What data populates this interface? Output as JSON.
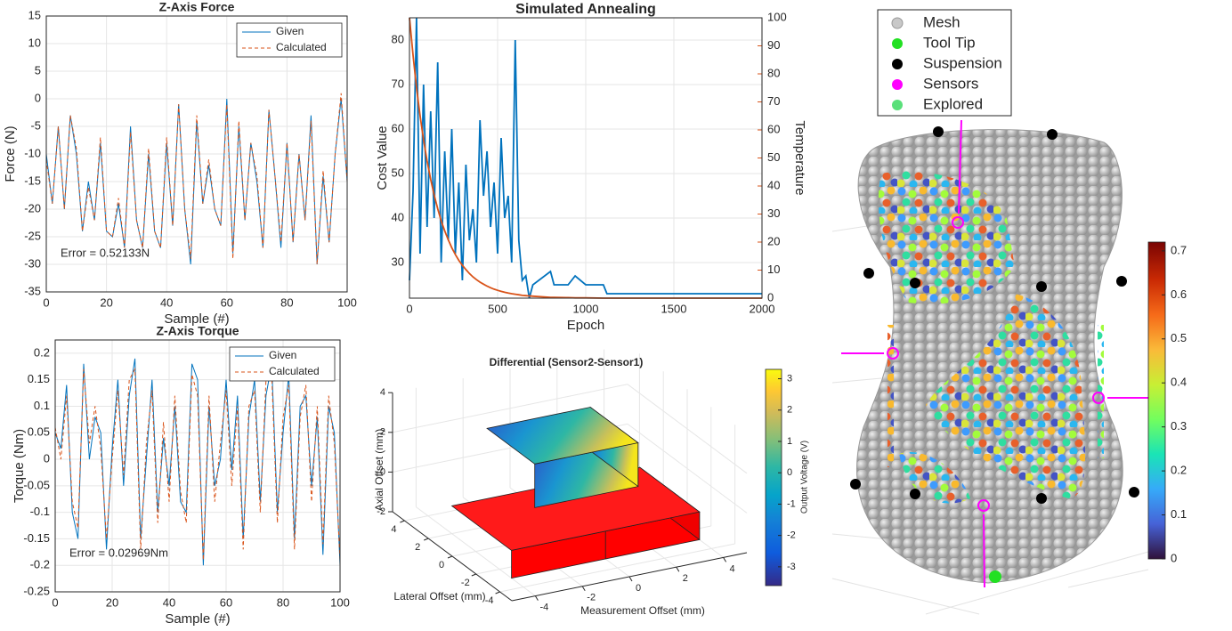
{
  "chart_data": [
    {
      "type": "line",
      "title": "Z-Axis Force",
      "xlabel": "Sample (#)",
      "ylabel": "Force (N)",
      "annotation": "Error = 0.52133N",
      "xlim": [
        0,
        100
      ],
      "xticks": [
        0,
        20,
        40,
        60,
        80,
        100
      ],
      "ylim": [
        -35,
        15
      ],
      "yticks": [
        -35,
        -30,
        -25,
        -20,
        -15,
        -10,
        -5,
        0,
        5,
        10,
        15
      ],
      "grid": true,
      "legend": "upper right",
      "x": [
        0,
        2,
        4,
        6,
        8,
        10,
        12,
        14,
        16,
        18,
        20,
        22,
        24,
        26,
        28,
        30,
        32,
        34,
        36,
        38,
        40,
        42,
        44,
        46,
        48,
        50,
        52,
        54,
        56,
        58,
        60,
        62,
        64,
        66,
        68,
        70,
        72,
        74,
        76,
        78,
        80,
        82,
        84,
        86,
        88,
        90,
        92,
        94,
        96,
        98,
        100
      ],
      "series": [
        {
          "name": "Given",
          "color": "#0072bd",
          "style": "solid",
          "values": [
            -10,
            -19,
            -5,
            -20,
            -3,
            -10,
            -24,
            -15,
            -22,
            -8,
            -24,
            -25,
            -19,
            -27,
            -5,
            -22,
            -27,
            -10,
            -24,
            -27,
            -8,
            -23,
            -1,
            -20,
            -30,
            -4,
            -19,
            -12,
            -20,
            -23,
            0,
            -28,
            -5,
            -22,
            -8,
            -15,
            -27,
            -2,
            -14,
            -27,
            -8,
            -26,
            -10,
            -22,
            -3,
            -30,
            -14,
            -26,
            -10,
            0,
            -15
          ]
        },
        {
          "name": "Calculated",
          "color": "#d95319",
          "style": "dashed",
          "values": [
            -11,
            -19,
            -5,
            -20,
            -3,
            -9,
            -24,
            -16,
            -22,
            -7,
            -24,
            -25,
            -18,
            -27,
            -6,
            -22,
            -27,
            -9,
            -24,
            -27,
            -7,
            -23,
            -1,
            -20,
            -29,
            -3,
            -19,
            -11,
            -20,
            -23,
            -1,
            -29,
            -4,
            -22,
            -8,
            -14,
            -27,
            -2,
            -14,
            -26,
            -8,
            -26,
            -10,
            -22,
            -4,
            -30,
            -13,
            -26,
            -10,
            1,
            -15
          ]
        }
      ]
    },
    {
      "type": "line",
      "title": "Z-Axis Torque",
      "xlabel": "Sample (#)",
      "ylabel": "Torque (Nm)",
      "annotation": "Error = 0.02969Nm",
      "xlim": [
        0,
        100
      ],
      "xticks": [
        0,
        20,
        40,
        60,
        80,
        100
      ],
      "ylim": [
        -0.25,
        0.225
      ],
      "yticks": [
        -0.25,
        -0.2,
        -0.15,
        -0.1,
        -0.05,
        0,
        0.05,
        0.1,
        0.15,
        0.2
      ],
      "grid": true,
      "legend": "upper right",
      "x": [
        0,
        2,
        4,
        6,
        8,
        10,
        12,
        14,
        16,
        18,
        20,
        22,
        24,
        26,
        28,
        30,
        32,
        34,
        36,
        38,
        40,
        42,
        44,
        46,
        48,
        50,
        52,
        54,
        56,
        58,
        60,
        62,
        64,
        66,
        68,
        70,
        72,
        74,
        76,
        78,
        80,
        82,
        84,
        86,
        88,
        90,
        92,
        94,
        96,
        98,
        100
      ],
      "series": [
        {
          "name": "Given",
          "color": "#0072bd",
          "style": "solid",
          "values": [
            0.05,
            0.02,
            0.14,
            -0.1,
            -0.15,
            0.18,
            0,
            0.08,
            0.05,
            -0.17,
            0.02,
            0.15,
            -0.05,
            0.12,
            0.19,
            -0.15,
            0,
            0.15,
            -0.1,
            0.04,
            -0.05,
            0.1,
            -0.08,
            -0.1,
            0.18,
            0.15,
            -0.2,
            0.1,
            -0.05,
            0,
            0.15,
            -0.02,
            0.12,
            -0.15,
            0.08,
            0.15,
            -0.08,
            0.12,
            0.18,
            -0.1,
            0.05,
            0.16,
            -0.15,
            0.1,
            0.12,
            -0.05,
            0.08,
            -0.18,
            0.1,
            0.05,
            -0.2
          ]
        },
        {
          "name": "Calculated",
          "color": "#d95319",
          "style": "dashed",
          "values": [
            0.06,
            0,
            0.12,
            -0.08,
            -0.13,
            0.17,
            0.03,
            0.1,
            0.02,
            -0.15,
            0,
            0.13,
            -0.03,
            0.15,
            0.17,
            -0.17,
            0.03,
            0.13,
            -0.12,
            0.07,
            -0.08,
            0.12,
            -0.06,
            -0.12,
            0.16,
            0.12,
            -0.19,
            0.12,
            -0.08,
            0.03,
            0.13,
            -0.05,
            0.1,
            -0.17,
            0.1,
            0.13,
            -0.1,
            0.15,
            0.16,
            -0.12,
            0.08,
            0.14,
            -0.17,
            0.08,
            0.14,
            -0.08,
            0.1,
            -0.16,
            0.12,
            0.03,
            -0.19
          ]
        }
      ]
    },
    {
      "type": "line",
      "title": "Simulated Annealing",
      "xlabel": "Epoch",
      "ylabel": "Cost Value",
      "y2label": "Temperature",
      "xlim": [
        0,
        2000
      ],
      "xticks": [
        0,
        500,
        1000,
        1500,
        2000
      ],
      "ylim": [
        22,
        85
      ],
      "yticks": [
        30,
        40,
        50,
        60,
        70,
        80
      ],
      "y2lim": [
        0,
        100
      ],
      "y2ticks": [
        0,
        10,
        20,
        30,
        40,
        50,
        60,
        70,
        80,
        90,
        100
      ],
      "grid": true,
      "x": [
        0,
        20,
        40,
        60,
        80,
        100,
        120,
        140,
        160,
        180,
        200,
        220,
        240,
        260,
        280,
        300,
        320,
        340,
        360,
        380,
        400,
        420,
        440,
        460,
        480,
        500,
        520,
        540,
        560,
        580,
        600,
        620,
        640,
        660,
        680,
        700,
        800,
        820,
        900,
        940,
        1000,
        1100,
        1120,
        2000
      ],
      "series": [
        {
          "name": "Cost Value",
          "color": "#0072bd",
          "style": "solid",
          "values": [
            26,
            46,
            85,
            32,
            70,
            38,
            64,
            40,
            75,
            30,
            55,
            35,
            60,
            32,
            48,
            26,
            52,
            35,
            42,
            30,
            62,
            45,
            55,
            38,
            48,
            32,
            58,
            40,
            45,
            30,
            80,
            35,
            26,
            27,
            22,
            25,
            28,
            25,
            25,
            27,
            25,
            25,
            23,
            23
          ]
        },
        {
          "name": "Temperature",
          "color": "#d95319",
          "style": "solid",
          "axis": "y2",
          "values": [
            100,
            86.7,
            75.1,
            65.1,
            56.5,
            48.9,
            42.4,
            36.8,
            31.9,
            27.6,
            24,
            20.8,
            18,
            15.6,
            13.5,
            11.7,
            10.2,
            8.8,
            7.6,
            6.6,
            5.7,
            5,
            4.3,
            3.7,
            3.2,
            2.8,
            2.4,
            2.1,
            1.8,
            1.6,
            1.4,
            1.2,
            1,
            0.9,
            0.8,
            0.7,
            0.3,
            0.3,
            0.2,
            0.1,
            0.1,
            0,
            0,
            0
          ]
        }
      ]
    },
    {
      "type": "box3d",
      "title": "Differential (Sensor2-Sensor1)",
      "xlabel": "Measurement Offset (mm)",
      "ylabel": "Lateral Offset (mm)",
      "zlabel": "Axial Offset (mm)",
      "xticks": [
        -4,
        -2,
        0,
        2,
        4
      ],
      "yticks": [
        -4,
        -2,
        0,
        2,
        4
      ],
      "zticks": [
        -2,
        0,
        2,
        4
      ],
      "colorbar": {
        "label": "Output Voltage (V)",
        "lim": [
          -3.6,
          3.3
        ],
        "ticks": [
          -3,
          -2,
          -1,
          0,
          1,
          2,
          3
        ]
      }
    },
    {
      "type": "mesh3d",
      "legend": [
        {
          "name": "Mesh",
          "color": "#c8c8c8"
        },
        {
          "name": "Tool Tip",
          "color": "#22e022"
        },
        {
          "name": "Suspension",
          "color": "#000000"
        },
        {
          "name": "Sensors",
          "color": "#ff00ff"
        },
        {
          "name": "Explored",
          "color": "#5ae07a"
        }
      ],
      "colorbar": {
        "lim": [
          0,
          0.72
        ],
        "ticks": [
          0,
          0.1,
          0.2,
          0.3,
          0.4,
          0.5,
          0.6,
          0.7
        ]
      }
    }
  ]
}
